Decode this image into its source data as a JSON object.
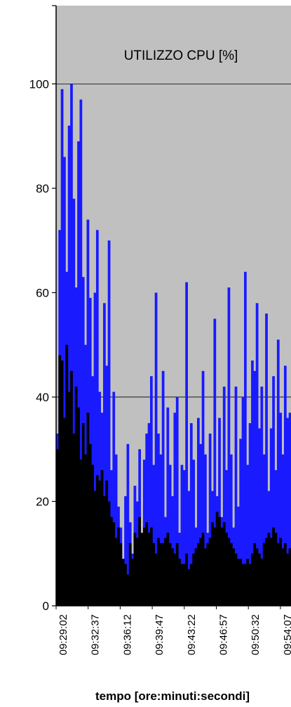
{
  "chart_data": {
    "type": "area",
    "title": "UTILIZZO CPU [%]",
    "xlabel": "tempo [ore:minuti:secondi]",
    "ylabel": "",
    "ylim": [
      0,
      115
    ],
    "y_ticks": [
      0,
      20,
      40,
      60,
      80,
      100
    ],
    "grid_y_lines": [
      40,
      100
    ],
    "grid": true,
    "background_color": "#c0c0c0",
    "x_tick_labels": [
      "09:29:02",
      "09:32:37",
      "09:36:12",
      "09:39:47",
      "09:43:22",
      "09:46:57",
      "09:50:32",
      "09:54:07"
    ],
    "x_range": [
      "09:29:02",
      "09:56:14"
    ],
    "series": [
      {
        "role": "total",
        "color": "#1a1aff",
        "values": [
          33,
          72,
          99,
          86,
          64,
          92,
          100,
          78,
          61,
          89,
          97,
          63,
          50,
          74,
          59,
          44,
          60,
          72,
          41,
          37,
          58,
          46,
          70,
          26,
          41,
          29,
          19,
          15,
          6,
          21,
          31,
          16,
          10,
          23,
          20,
          30,
          8,
          28,
          33,
          35,
          44,
          27,
          60,
          33,
          29,
          45,
          17,
          38,
          27,
          21,
          37,
          40,
          14,
          27,
          26,
          62,
          22,
          35,
          28,
          15,
          36,
          31,
          45,
          29,
          14,
          33,
          22,
          55,
          21,
          36,
          17,
          42,
          26,
          61,
          29,
          15,
          42,
          19,
          32,
          40,
          64,
          27,
          35,
          47,
          45,
          58,
          34,
          42,
          29,
          56,
          22,
          34,
          44,
          26,
          51,
          37,
          29,
          46,
          36,
          37
        ]
      },
      {
        "role": "base",
        "color": "#000000",
        "values": [
          30,
          48,
          47,
          36,
          50,
          41,
          45,
          33,
          42,
          38,
          28,
          35,
          29,
          37,
          31,
          27,
          22,
          25,
          24,
          26,
          21,
          24,
          20,
          17,
          16,
          13,
          15,
          12,
          9,
          8,
          6,
          12,
          9,
          14,
          13,
          17,
          14,
          15,
          16,
          14,
          15,
          12,
          10,
          13,
          12,
          12,
          13,
          14,
          12,
          11,
          10,
          12,
          9,
          8,
          8,
          10,
          7,
          8,
          10,
          11,
          12,
          13,
          14,
          11,
          12,
          13,
          16,
          15,
          18,
          17,
          15,
          16,
          14,
          13,
          12,
          11,
          10,
          9,
          9,
          8,
          8,
          9,
          8,
          10,
          12,
          11,
          10,
          9,
          12,
          13,
          14,
          13,
          15,
          14,
          12,
          13,
          11,
          12,
          10,
          11
        ]
      }
    ]
  }
}
